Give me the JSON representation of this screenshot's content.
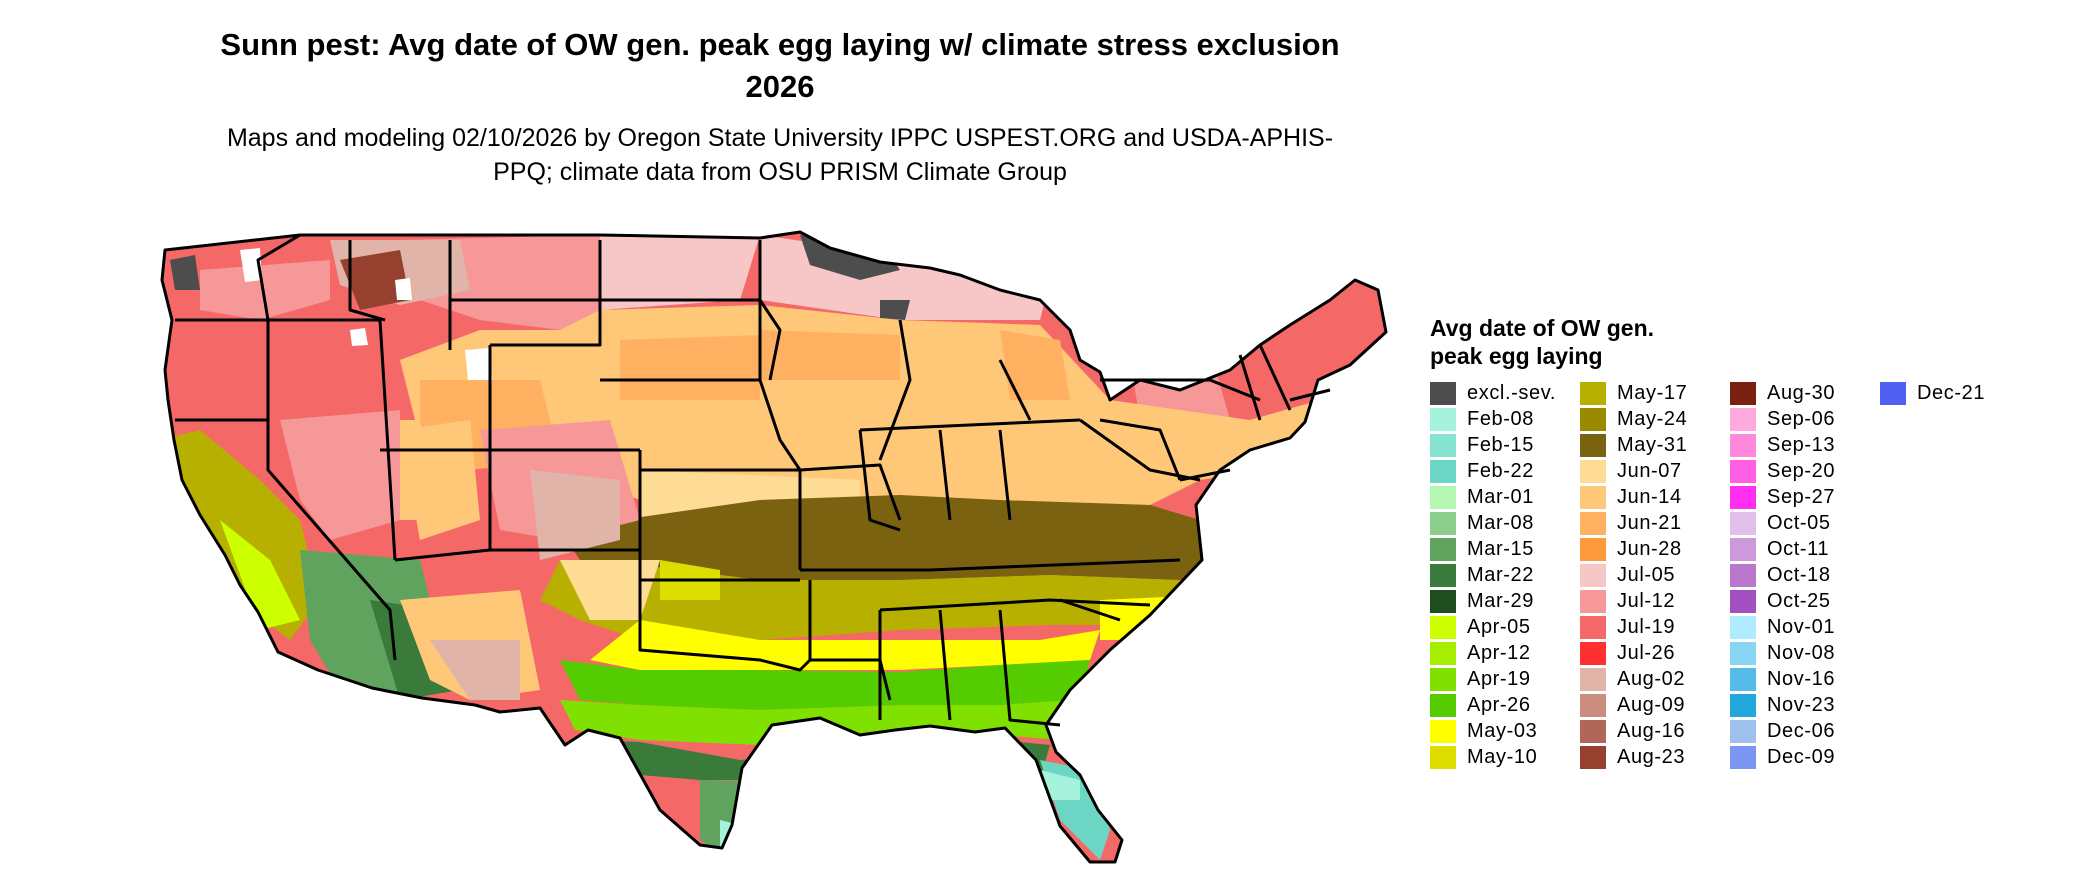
{
  "title": "Sunn pest: Avg date of OW gen. peak egg laying w/ climate stress exclusion 2026",
  "subtitle": "Maps and modeling 02/10/2026 by Oregon State University IPPC USPEST.ORG and USDA-APHIS-PPQ; climate data from OSU PRISM Climate Group",
  "legend": {
    "title": "Avg date of OW gen. peak egg laying",
    "items": [
      {
        "label": "excl.-sev.",
        "color": "#4d4d4d"
      },
      {
        "label": "Feb-08",
        "color": "#a6f2dc"
      },
      {
        "label": "Feb-15",
        "color": "#86e3cf"
      },
      {
        "label": "Feb-22",
        "color": "#6bd6c4"
      },
      {
        "label": "Mar-01",
        "color": "#b3f7b3"
      },
      {
        "label": "Mar-08",
        "color": "#8ccf8c"
      },
      {
        "label": "Mar-15",
        "color": "#5fa35f"
      },
      {
        "label": "Mar-22",
        "color": "#3a7a3a"
      },
      {
        "label": "Mar-29",
        "color": "#1e4d1e"
      },
      {
        "label": "Apr-05",
        "color": "#ccff00"
      },
      {
        "label": "Apr-12",
        "color": "#a6ee00"
      },
      {
        "label": "Apr-19",
        "color": "#80e000"
      },
      {
        "label": "Apr-26",
        "color": "#55cc00"
      },
      {
        "label": "May-03",
        "color": "#ffff00"
      },
      {
        "label": "May-10",
        "color": "#dddd00"
      },
      {
        "label": "May-17",
        "color": "#b8b000"
      },
      {
        "label": "May-24",
        "color": "#9a8a00"
      },
      {
        "label": "May-31",
        "color": "#7a6210"
      },
      {
        "label": "Jun-07",
        "color": "#ffdc96"
      },
      {
        "label": "Jun-14",
        "color": "#ffc878"
      },
      {
        "label": "Jun-21",
        "color": "#ffb060"
      },
      {
        "label": "Jun-28",
        "color": "#ff9a3c"
      },
      {
        "label": "Jul-05",
        "color": "#f7c6c6"
      },
      {
        "label": "Jul-12",
        "color": "#f79898"
      },
      {
        "label": "Jul-19",
        "color": "#f56868"
      },
      {
        "label": "Jul-26",
        "color": "#ff3030"
      },
      {
        "label": "Aug-02",
        "color": "#e0b4a8"
      },
      {
        "label": "Aug-09",
        "color": "#cc8c80"
      },
      {
        "label": "Aug-16",
        "color": "#b06658"
      },
      {
        "label": "Aug-23",
        "color": "#964030"
      },
      {
        "label": "Aug-30",
        "color": "#7a2010"
      },
      {
        "label": "Sep-06",
        "color": "#ffaadd"
      },
      {
        "label": "Sep-13",
        "color": "#ff88dd"
      },
      {
        "label": "Sep-20",
        "color": "#ff5ee6"
      },
      {
        "label": "Sep-27",
        "color": "#ff2ef0"
      },
      {
        "label": "Oct-05",
        "color": "#e0c0ea"
      },
      {
        "label": "Oct-11",
        "color": "#cc99dd"
      },
      {
        "label": "Oct-18",
        "color": "#bb77cc"
      },
      {
        "label": "Oct-25",
        "color": "#a050c0"
      },
      {
        "label": "Nov-01",
        "color": "#b0ecff"
      },
      {
        "label": "Nov-08",
        "color": "#88d6f4"
      },
      {
        "label": "Nov-16",
        "color": "#55bbe8"
      },
      {
        "label": "Nov-23",
        "color": "#22a8dd"
      },
      {
        "label": "Dec-06",
        "color": "#a0c0ee"
      },
      {
        "label": "Dec-09",
        "color": "#7a96f0"
      },
      {
        "label": "Dec-21",
        "color": "#5060f0"
      }
    ]
  }
}
